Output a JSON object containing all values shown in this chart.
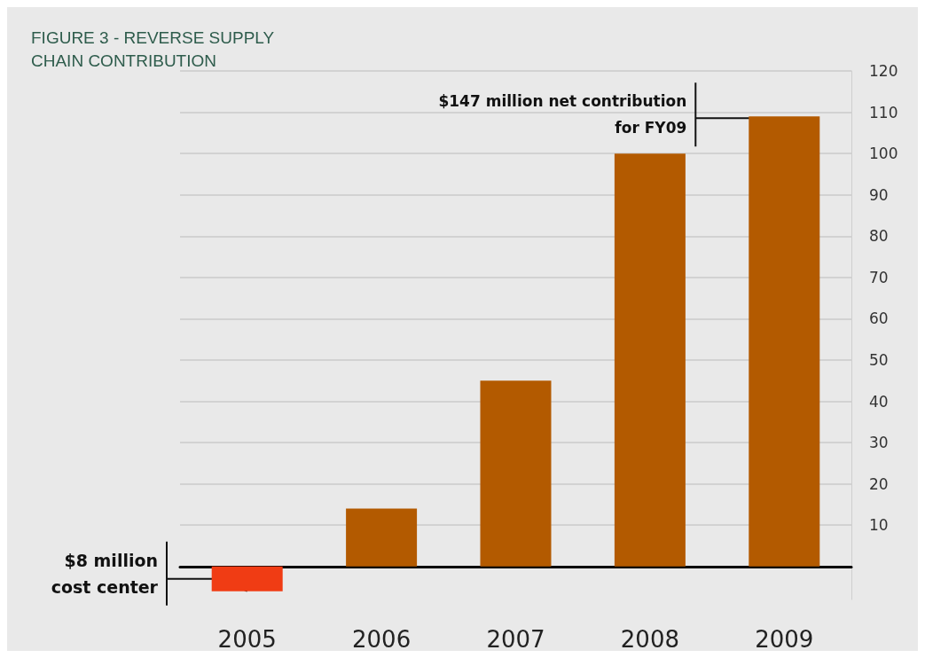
{
  "chart_data": {
    "type": "bar",
    "title": "FIGURE 3 - REVERSE SUPPLY CHAIN CONTRIBUTION",
    "categories": [
      "2005",
      "2006",
      "2007",
      "2008",
      "2009"
    ],
    "values": [
      -6,
      14,
      45,
      100,
      109
    ],
    "colors": [
      "#f03c14",
      "#b35a00",
      "#b35a00",
      "#b35a00",
      "#b35a00"
    ],
    "ylim": [
      -8,
      120
    ],
    "yticks": [
      10,
      20,
      30,
      40,
      50,
      60,
      70,
      80,
      90,
      100,
      110,
      120
    ],
    "grid": "y",
    "annotations": [
      {
        "text": "$147 million net contribution for FY09",
        "x": "2009",
        "y": 109
      },
      {
        "text": "$8 million cost center",
        "x": "2005",
        "y": -6
      }
    ]
  }
}
